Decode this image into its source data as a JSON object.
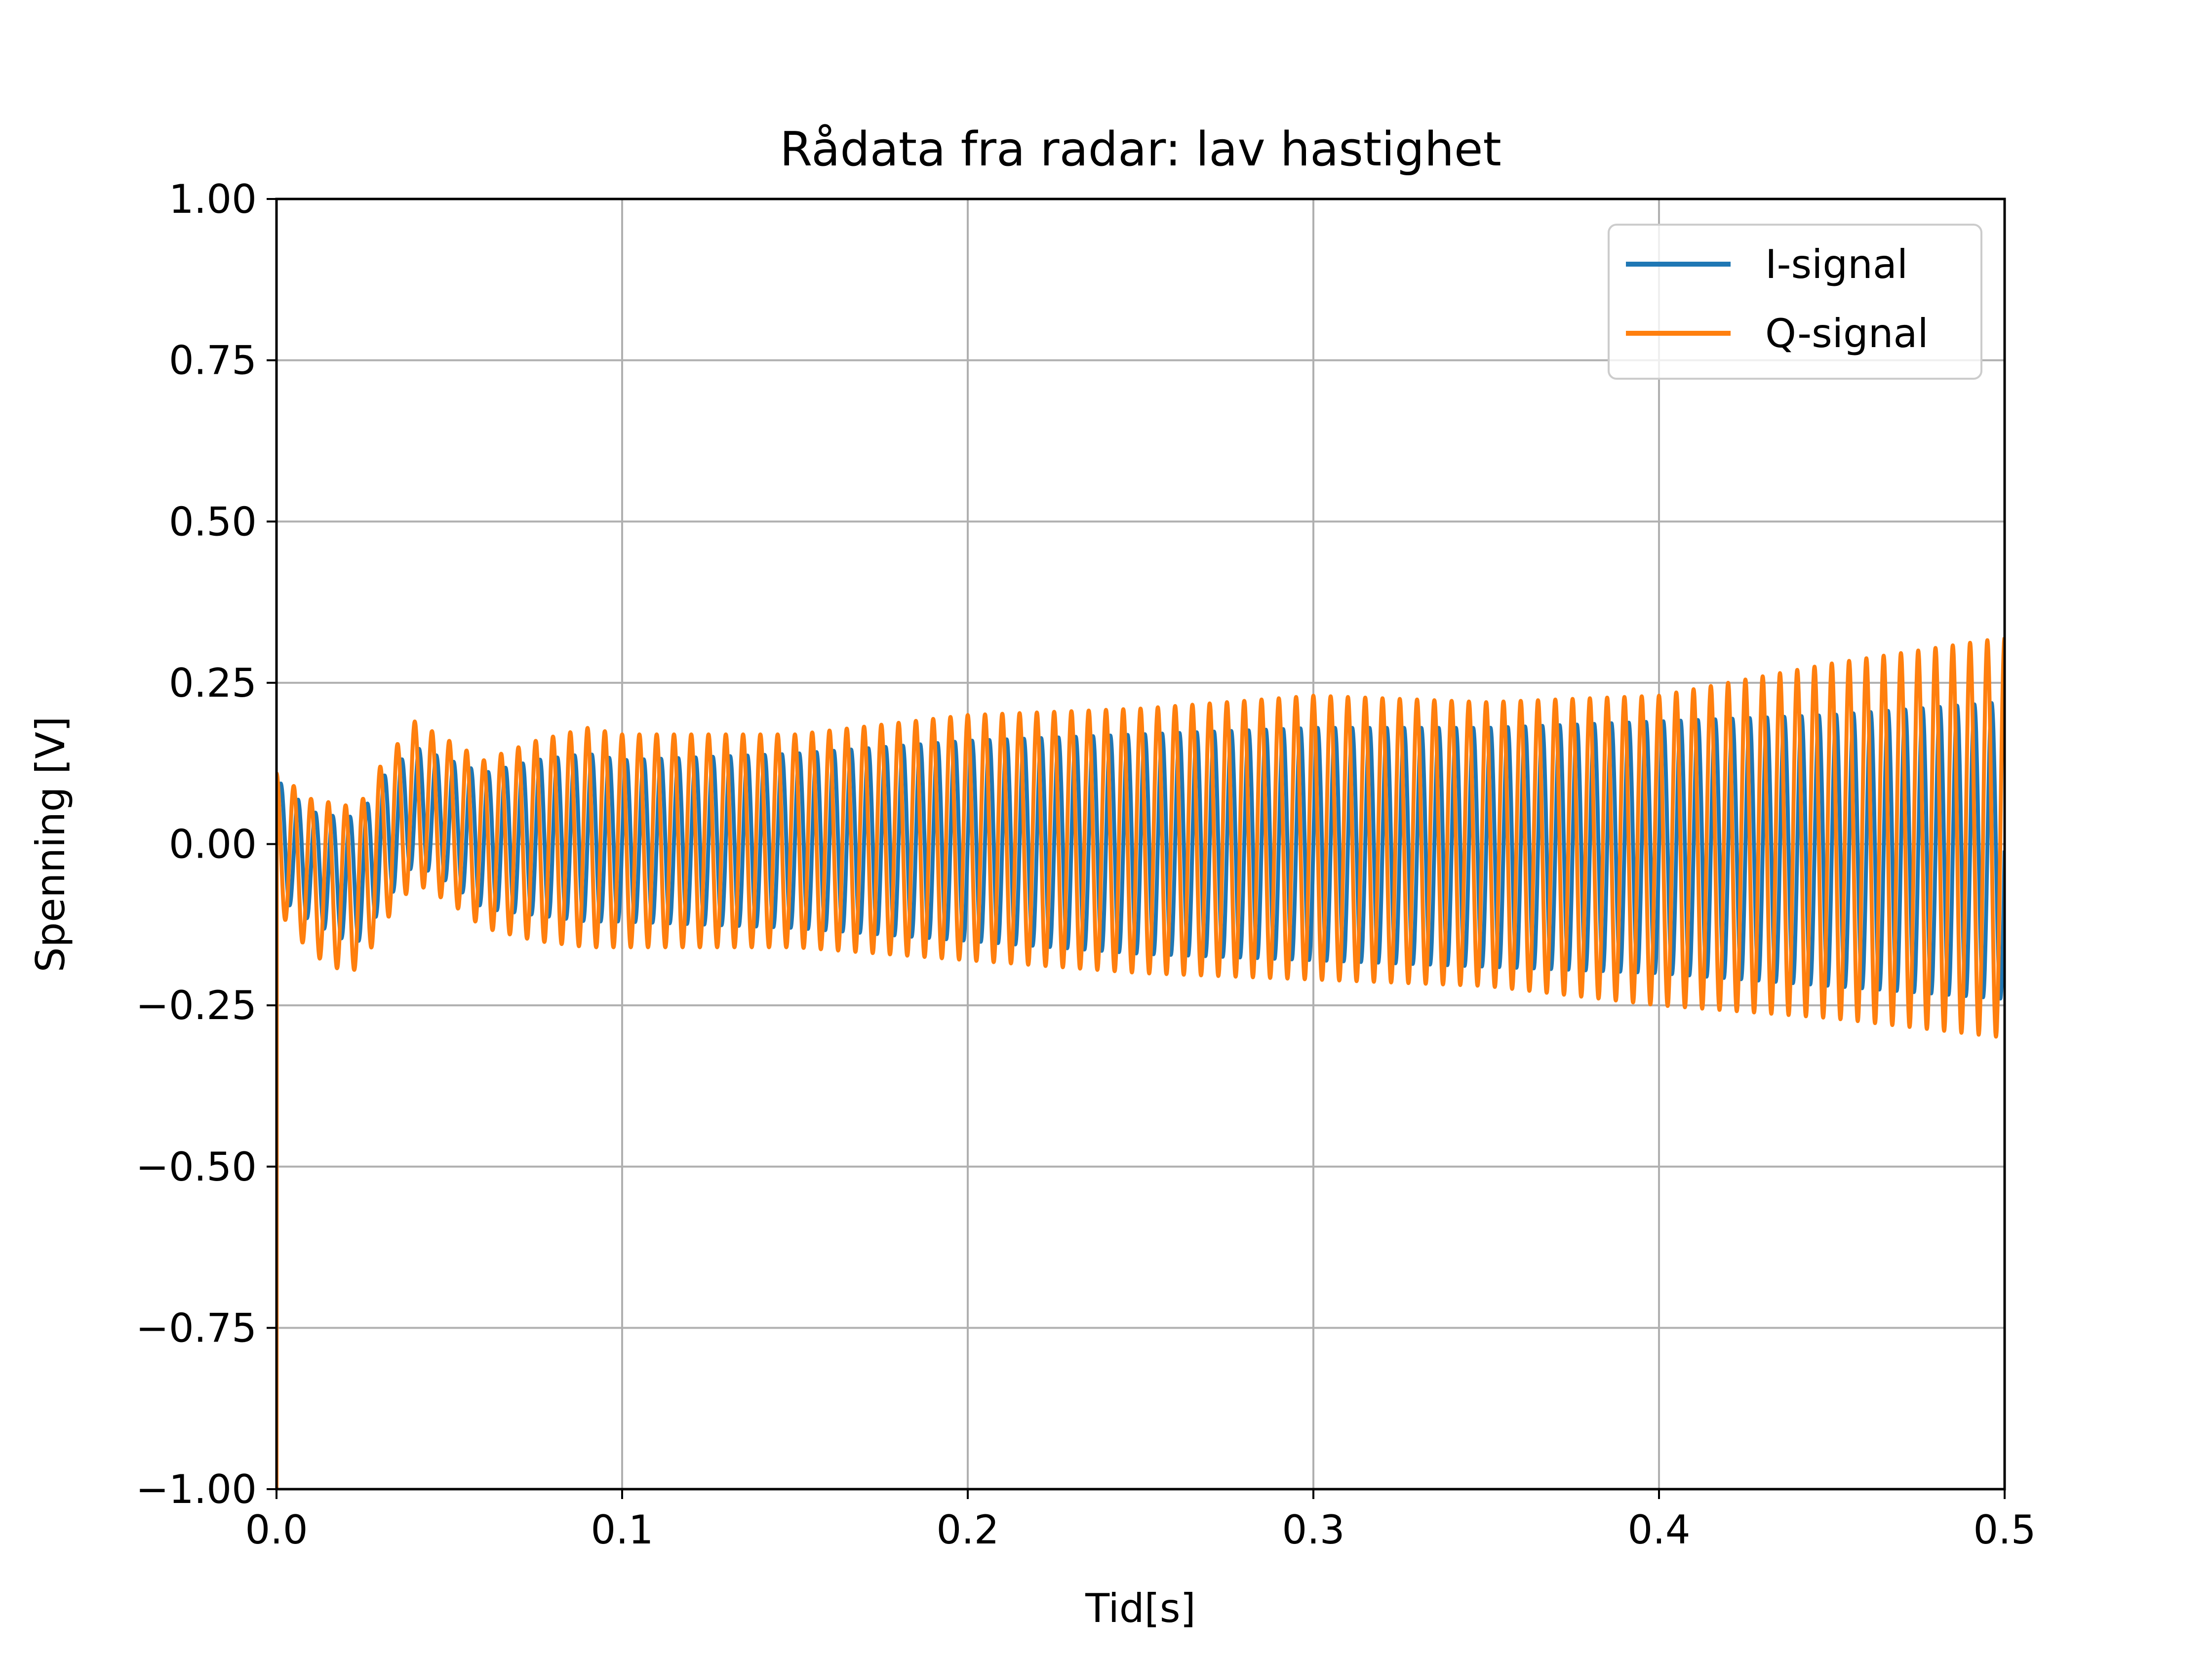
{
  "chart_data": {
    "type": "line",
    "title": "Rådata fra radar: lav hastighet",
    "xlabel": "Tid[s]",
    "ylabel": "Spenning [V]",
    "xlim": [
      0.0,
      0.5
    ],
    "ylim": [
      -1.0,
      1.0
    ],
    "xticks": [
      "0.0",
      "0.1",
      "0.2",
      "0.3",
      "0.4",
      "0.5"
    ],
    "yticks": [
      "1.00",
      "0.75",
      "0.50",
      "0.25",
      "0.00",
      "−0.25",
      "−0.50",
      "−0.75",
      "−1.00"
    ],
    "grid": true,
    "legend_position": "top-right",
    "series": [
      {
        "name": "I-signal",
        "color": "#1f77b4",
        "oscillation_hz": 200,
        "envelope": {
          "t": [
            0.0,
            0.01,
            0.02,
            0.025,
            0.03,
            0.04,
            0.05,
            0.06,
            0.075,
            0.09,
            0.1,
            0.15,
            0.2,
            0.25,
            0.3,
            0.35,
            0.4,
            0.45,
            0.5
          ],
          "upper": [
            0.1,
            0.05,
            0.04,
            0.05,
            0.1,
            0.15,
            0.13,
            0.11,
            0.13,
            0.14,
            0.13,
            0.14,
            0.16,
            0.17,
            0.18,
            0.18,
            0.19,
            0.2,
            0.22
          ],
          "lower": [
            -0.08,
            -0.12,
            -0.15,
            -0.15,
            -0.1,
            -0.03,
            -0.06,
            -0.1,
            -0.11,
            -0.12,
            -0.12,
            -0.13,
            -0.15,
            -0.17,
            -0.18,
            -0.19,
            -0.2,
            -0.22,
            -0.24
          ]
        }
      },
      {
        "name": "Q-signal",
        "color": "#ff7f0e",
        "oscillation_hz": 200,
        "envelope": {
          "t": [
            0.0,
            0.01,
            0.02,
            0.025,
            0.03,
            0.04,
            0.05,
            0.06,
            0.075,
            0.09,
            0.1,
            0.15,
            0.2,
            0.25,
            0.3,
            0.35,
            0.4,
            0.45,
            0.5
          ],
          "upper": [
            0.11,
            0.07,
            0.06,
            0.07,
            0.12,
            0.19,
            0.16,
            0.13,
            0.16,
            0.18,
            0.17,
            0.17,
            0.2,
            0.21,
            0.23,
            0.22,
            0.23,
            0.28,
            0.32
          ],
          "lower": [
            -0.1,
            -0.17,
            -0.2,
            -0.19,
            -0.13,
            -0.06,
            -0.09,
            -0.13,
            -0.15,
            -0.16,
            -0.16,
            -0.16,
            -0.18,
            -0.2,
            -0.21,
            -0.22,
            -0.25,
            -0.27,
            -0.3
          ]
        }
      }
    ]
  }
}
